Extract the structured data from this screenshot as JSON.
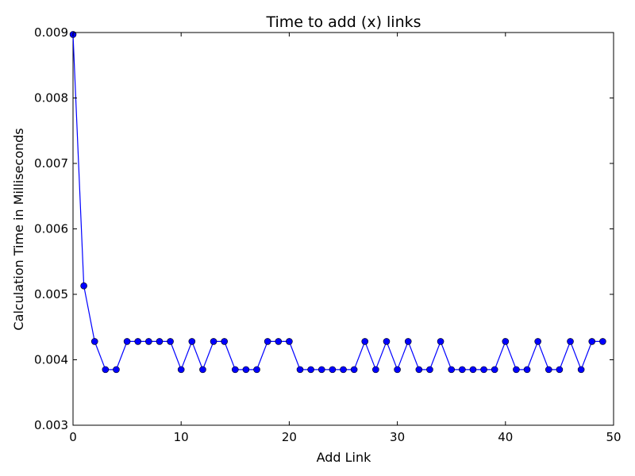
{
  "chart_data": {
    "type": "line",
    "title": "Time to add (x) links",
    "xlabel": "Add Link",
    "ylabel": "Calculation Time in Milliseconds",
    "xlim": [
      0,
      50
    ],
    "ylim": [
      0.003,
      0.009
    ],
    "xticks": [
      0,
      10,
      20,
      30,
      40,
      50
    ],
    "xtick_labels": [
      "0",
      "10",
      "20",
      "30",
      "40",
      "50"
    ],
    "yticks": [
      0.003,
      0.004,
      0.005,
      0.006,
      0.007,
      0.008,
      0.009
    ],
    "ytick_labels": [
      "0.003",
      "0.004",
      "0.005",
      "0.006",
      "0.007",
      "0.008",
      "0.009"
    ],
    "grid": false,
    "legend": "none",
    "series": [
      {
        "color": "#0000ff",
        "marker": "circle",
        "x": [
          0,
          1,
          2,
          3,
          4,
          5,
          6,
          7,
          8,
          9,
          10,
          11,
          12,
          13,
          14,
          15,
          16,
          17,
          18,
          19,
          20,
          21,
          22,
          23,
          24,
          25,
          26,
          27,
          28,
          29,
          30,
          31,
          32,
          33,
          34,
          35,
          36,
          37,
          38,
          39,
          40,
          41,
          42,
          43,
          44,
          45,
          46,
          47,
          48,
          49
        ],
        "y": [
          0.00897,
          0.00513,
          0.00428,
          0.00385,
          0.00385,
          0.00428,
          0.00428,
          0.00428,
          0.00428,
          0.00428,
          0.00385,
          0.00428,
          0.00385,
          0.00428,
          0.00428,
          0.00385,
          0.00385,
          0.00385,
          0.00428,
          0.00428,
          0.00428,
          0.00385,
          0.00385,
          0.00385,
          0.00385,
          0.00385,
          0.00385,
          0.00428,
          0.00385,
          0.00428,
          0.00385,
          0.00428,
          0.00385,
          0.00385,
          0.00428,
          0.00385,
          0.00385,
          0.00385,
          0.00385,
          0.00385,
          0.00428,
          0.00385,
          0.00385,
          0.00428,
          0.00385,
          0.00385,
          0.00428,
          0.00385,
          0.00428,
          0.00428
        ]
      }
    ]
  }
}
